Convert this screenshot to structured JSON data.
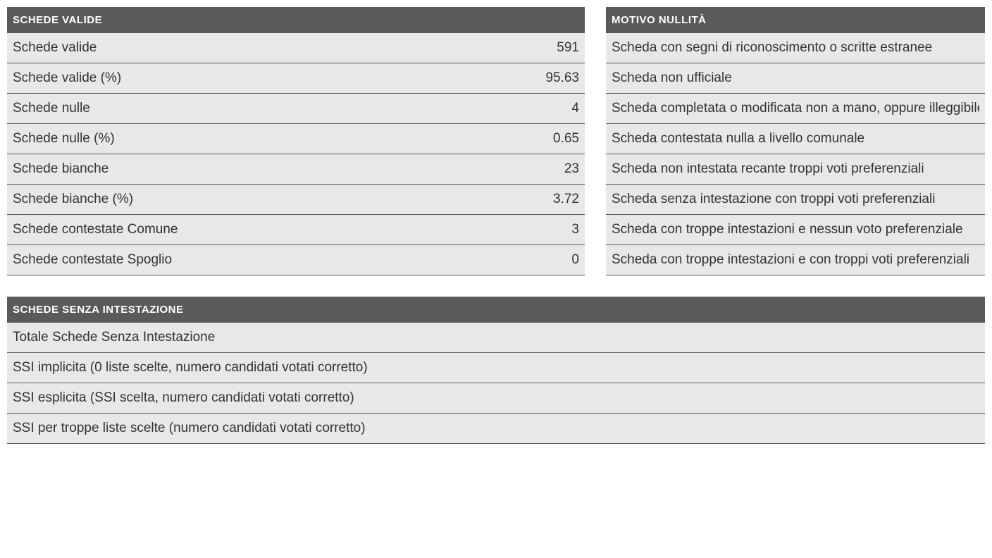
{
  "colors": {
    "header_bg": "#5a5a5a",
    "header_text": "#ffffff",
    "row_bg": "#e8e8e8",
    "row_text": "#333333",
    "border": "#5a5a5a",
    "page_bg": "#ffffff"
  },
  "typography": {
    "header_fontsize": 15,
    "row_fontsize": 19,
    "font_family": "Arial, Helvetica, sans-serif"
  },
  "tables": {
    "valide": {
      "title": "SCHEDE VALIDE",
      "rows": [
        {
          "label": "Schede valide",
          "value": "591"
        },
        {
          "label": "Schede valide (%)",
          "value": "95.63"
        },
        {
          "label": "Schede nulle",
          "value": "4"
        },
        {
          "label": "Schede nulle (%)",
          "value": "0.65"
        },
        {
          "label": "Schede bianche",
          "value": "23"
        },
        {
          "label": "Schede bianche (%)",
          "value": "3.72"
        },
        {
          "label": "Schede contestate Comune",
          "value": "3"
        },
        {
          "label": "Schede contestate Spoglio",
          "value": "0"
        }
      ]
    },
    "nullita": {
      "title": "MOTIVO NULLITÀ",
      "rows": [
        {
          "label": "Scheda con segni di riconoscimento o scritte estranee"
        },
        {
          "label": "Scheda non ufficiale"
        },
        {
          "label": "Scheda completata o modificata non a mano, oppure illeggibile"
        },
        {
          "label": "Scheda contestata nulla a livello comunale"
        },
        {
          "label": "Scheda non intestata recante troppi voti preferenziali"
        },
        {
          "label": "Scheda senza intestazione con troppi voti preferenziali"
        },
        {
          "label": "Scheda con troppe intestazioni e nessun voto preferenziale"
        },
        {
          "label": "Scheda con troppe intestazioni e con troppi voti preferenziali"
        }
      ]
    },
    "ssi": {
      "title": "SCHEDE SENZA INTESTAZIONE",
      "rows": [
        {
          "label": "Totale Schede Senza Intestazione"
        },
        {
          "label": "SSI implicita (0 liste scelte, numero candidati votati corretto)"
        },
        {
          "label": "SSI esplicita (SSI scelta, numero candidati votati corretto)"
        },
        {
          "label": "SSI per troppe liste scelte (numero candidati votati corretto)"
        }
      ]
    }
  }
}
